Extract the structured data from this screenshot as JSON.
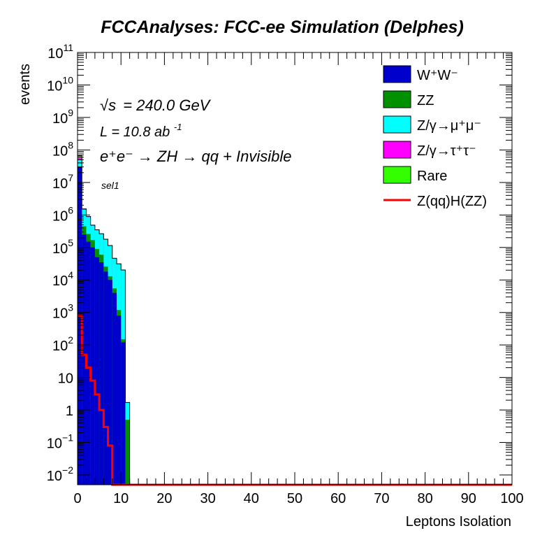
{
  "chart_data": {
    "type": "histogram-stacked",
    "title": "FCCAnalyses: FCC-ee Simulation (Delphes)",
    "xlabel": "Leptons Isolation",
    "ylabel": "events",
    "xlim": [
      0,
      100
    ],
    "ylim": [
      0.005,
      100000000000
    ],
    "yscale": "log",
    "grid": false,
    "legend_position": "top-right",
    "annotations": {
      "sqrt_s_symbol": "√s",
      "energy": "= 240.0 GeV",
      "lumi": "L = 10.8 ab",
      "lumi_exp": "-1",
      "process": "e⁺e⁻ → ZH → qq + Invisible",
      "selection": "sel1"
    },
    "x_ticks": [
      "0",
      "10",
      "20",
      "30",
      "40",
      "50",
      "60",
      "70",
      "80",
      "90",
      "100"
    ],
    "y_ticks": [
      {
        "value": 100000000000,
        "base": "10",
        "exp": "11"
      },
      {
        "value": 10000000000,
        "base": "10",
        "exp": "10"
      },
      {
        "value": 1000000000,
        "base": "10",
        "exp": "9"
      },
      {
        "value": 100000000,
        "base": "10",
        "exp": "8"
      },
      {
        "value": 10000000,
        "base": "10",
        "exp": "7"
      },
      {
        "value": 1000000,
        "base": "10",
        "exp": "6"
      },
      {
        "value": 100000,
        "base": "10",
        "exp": "5"
      },
      {
        "value": 10000,
        "base": "10",
        "exp": "4"
      },
      {
        "value": 1000,
        "base": "10",
        "exp": "3"
      },
      {
        "value": 100,
        "base": "10",
        "exp": "2"
      },
      {
        "value": 10,
        "base": "10",
        "exp": ""
      },
      {
        "value": 1,
        "base": "1",
        "exp": ""
      },
      {
        "value": 0.1,
        "base": "10",
        "exp": "−1"
      },
      {
        "value": 0.01,
        "base": "10",
        "exp": "−2"
      }
    ],
    "bin_edges": [
      0,
      1,
      2,
      3,
      4,
      5,
      6,
      7,
      8,
      9,
      10,
      11,
      12
    ],
    "series": [
      {
        "name": "W⁺W⁻",
        "color": "#0000cc",
        "style": "stacked-fill",
        "values": [
          30000000,
          250000,
          150000,
          100000,
          50000,
          35000,
          18000,
          10000,
          4000,
          800,
          120,
          0
        ]
      },
      {
        "name": "ZZ",
        "color": "#009000",
        "style": "stacked-fill",
        "values": [
          900000,
          200000,
          110000,
          70000,
          40000,
          25000,
          8000,
          3000,
          1500,
          400,
          30,
          0.5
        ]
      },
      {
        "name": "Z/γ→μ⁺μ⁻",
        "color": "#00ffff",
        "style": "stacked-fill",
        "values": [
          20000000,
          1000000,
          600000,
          300000,
          250000,
          200000,
          150000,
          100000,
          40000,
          30000,
          20000,
          1.2
        ]
      },
      {
        "name": "Z/γ→τ⁺τ⁻",
        "color": "#ff00ff",
        "style": "stacked-fill",
        "values": [
          5000000,
          80000,
          30000,
          15000,
          10000,
          5000,
          3000,
          1500,
          800,
          300,
          60,
          0
        ]
      },
      {
        "name": "Rare",
        "color": "#33ff00",
        "style": "stacked-fill",
        "values": [
          10000000,
          10000,
          5000,
          2000,
          1000,
          500,
          300,
          100,
          50,
          10,
          2,
          0
        ]
      },
      {
        "name": "Z(qq)H(ZZ)",
        "color": "#ff0000",
        "style": "line",
        "values": [
          800,
          50,
          20,
          8,
          3,
          1,
          0.3,
          0.08,
          0.003,
          0.003,
          0.003,
          0.003
        ]
      }
    ]
  }
}
